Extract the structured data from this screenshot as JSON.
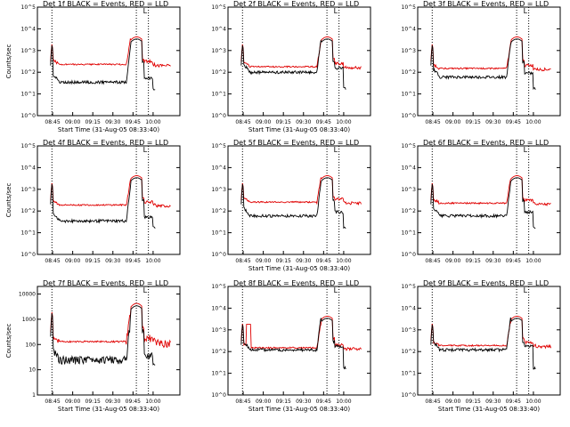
{
  "chart_data": [
    {
      "title": "Det 1f BLACK = Events, RED = LLD",
      "ylabel": "Counts/sec",
      "xlabel": "Start Time (31-Aug-05 08:33:40)",
      "x_ticks": [
        "08:45",
        "09:00",
        "09:15",
        "09:30",
        "09:45",
        "10:00"
      ],
      "y_ticks": [
        "10^0",
        "10^1",
        "10^2",
        "10^3",
        "10^4",
        "10^5"
      ],
      "marker": "L",
      "type": "line",
      "yscale": "log"
    },
    {
      "title": "Det 2f BLACK = Events, RED = LLD",
      "ylabel": "",
      "xlabel": "Start Time (31-Aug-05 08:33:40)",
      "x_ticks": [
        "08:45",
        "09:00",
        "09:15",
        "09:30",
        "09:45",
        "10:00"
      ],
      "y_ticks": [
        "10^0",
        "10^1",
        "10^2",
        "10^3",
        "10^4",
        "10^5"
      ],
      "marker": "L",
      "type": "line",
      "yscale": "log"
    },
    {
      "title": "Det 3f BLACK = Events, RED = LLD",
      "ylabel": "",
      "xlabel": "",
      "x_ticks": [
        "08:45",
        "09:00",
        "09:15",
        "09:30",
        "09:45",
        "10:00"
      ],
      "y_ticks": [
        "10^0",
        "10^1",
        "10^2",
        "10^3",
        "10^4",
        "10^5"
      ],
      "marker": "L",
      "type": "line",
      "yscale": "log"
    },
    {
      "title": "Det 4f BLACK = Events, RED = LLD",
      "ylabel": "Counts/sec",
      "xlabel": "",
      "x_ticks": [
        "08:45",
        "09:00",
        "09:15",
        "09:30",
        "09:45",
        "10:00"
      ],
      "y_ticks": [
        "10^0",
        "10^1",
        "10^2",
        "10^3",
        "10^4",
        "10^5"
      ],
      "marker": "L",
      "type": "line",
      "yscale": "log"
    },
    {
      "title": "Det 5f BLACK = Events, RED = LLD",
      "ylabel": "",
      "xlabel": "Start Time (31-Aug-05 08:33:40)",
      "x_ticks": [
        "08:45",
        "09:00",
        "09:15",
        "09:30",
        "09:45",
        "10:00"
      ],
      "y_ticks": [
        "10^0",
        "10^1",
        "10^2",
        "10^3",
        "10^4",
        "10^5"
      ],
      "marker": "L",
      "type": "line",
      "yscale": "log"
    },
    {
      "title": "Det 6f BLACK = Events, RED = LLD",
      "ylabel": "",
      "xlabel": "",
      "x_ticks": [
        "08:45",
        "09:00",
        "09:15",
        "09:30",
        "09:45",
        "10:00"
      ],
      "y_ticks": [
        "10^0",
        "10^1",
        "10^2",
        "10^3",
        "10^4",
        "10^5"
      ],
      "marker": "L",
      "type": "line",
      "yscale": "log"
    },
    {
      "title": "Det 7f BLACK = Events, RED = LLD",
      "ylabel": "Counts/sec",
      "xlabel": "Start Time (31-Aug-05 08:33:40)",
      "x_ticks": [
        "08:45",
        "09:00",
        "09:15",
        "09:30",
        "09:45",
        "10:00"
      ],
      "y_ticks": [
        "1",
        "10",
        "100",
        "1000",
        "10000"
      ],
      "marker": "L",
      "type": "line",
      "yscale": "log"
    },
    {
      "title": "Det 8f BLACK = Events, RED = LLD",
      "ylabel": "",
      "xlabel": "Start Time (31-Aug-05 08:33:40)",
      "x_ticks": [
        "08:45",
        "09:00",
        "09:15",
        "09:30",
        "09:45",
        "10:00"
      ],
      "y_ticks": [
        "10^0",
        "10^1",
        "10^2",
        "10^3",
        "10^4",
        "10^5"
      ],
      "marker": "L",
      "type": "line",
      "yscale": "log"
    },
    {
      "title": "Det 9f BLACK = Events, RED = LLD",
      "ylabel": "",
      "xlabel": "Start Time (31-Aug-05 08:33:40)",
      "x_ticks": [
        "08:45",
        "09:00",
        "09:15",
        "09:30",
        "09:45",
        "10:00"
      ],
      "y_ticks": [
        "10^0",
        "10^1",
        "10^2",
        "10^3",
        "10^4",
        "10^5"
      ],
      "marker": "L",
      "type": "line",
      "yscale": "log"
    }
  ],
  "colors": {
    "events": "#000000",
    "lld": "#e00000",
    "axes": "#000000"
  }
}
